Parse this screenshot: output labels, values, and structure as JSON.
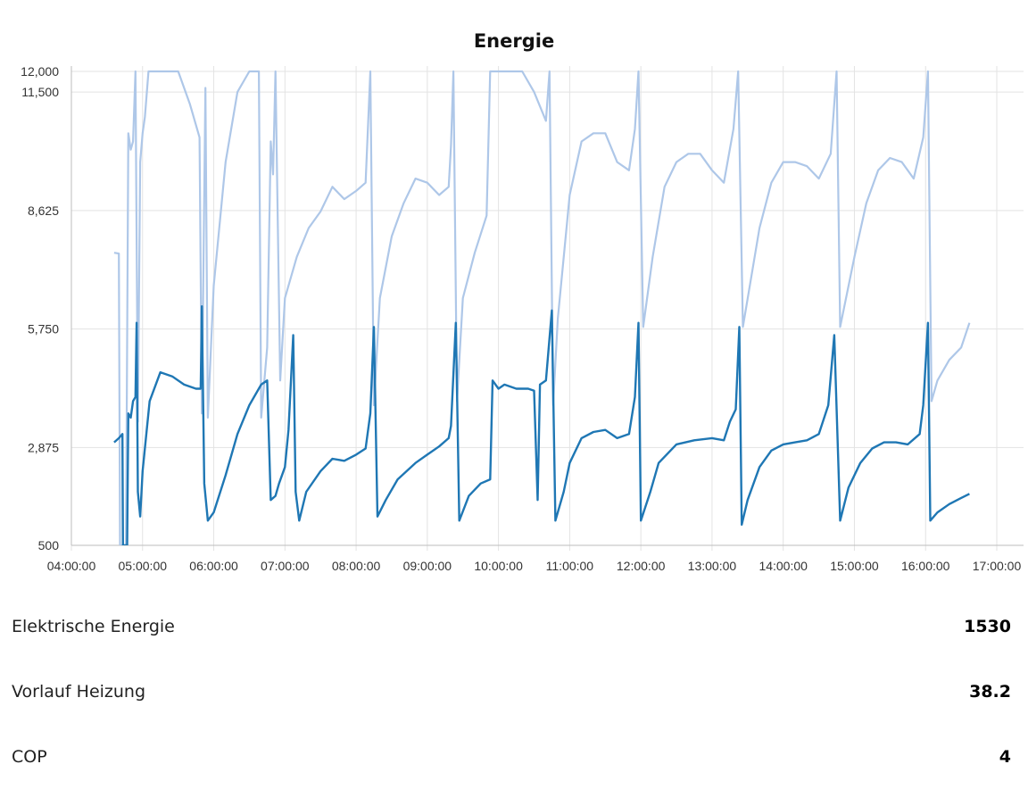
{
  "chart_data": {
    "type": "line",
    "title": "Energie",
    "xlabel": "",
    "ylabel": "",
    "grid": true,
    "legend": "none",
    "x_ticks": [
      "04:00:00",
      "05:00:00",
      "06:00:00",
      "07:00:00",
      "08:00:00",
      "09:00:00",
      "10:00:00",
      "11:00:00",
      "12:00:00",
      "13:00:00",
      "14:00:00",
      "15:00:00",
      "16:00:00",
      "17:00:00"
    ],
    "y_ticks": [
      "500",
      "2,875",
      "5,750",
      "8,625",
      "11,500",
      "12,000"
    ],
    "x_range": [
      "04:00:00",
      "17:00:00"
    ],
    "ylim": [
      500,
      12000
    ],
    "series": [
      {
        "color": "#aec7e8",
        "points": [
          [
            "04:36:00",
            7600
          ],
          [
            "04:40:00",
            7580
          ],
          [
            "04:41:00",
            500
          ],
          [
            "04:46:00",
            500
          ],
          [
            "04:48:00",
            10500
          ],
          [
            "04:50:00",
            10100
          ],
          [
            "04:52:00",
            10300
          ],
          [
            "04:54:00",
            12000
          ],
          [
            "04:56:00",
            3500
          ],
          [
            "04:58:00",
            9800
          ],
          [
            "05:00:00",
            10500
          ],
          [
            "05:02:00",
            10900
          ],
          [
            "05:05:00",
            12000
          ],
          [
            "05:10:00",
            12000
          ],
          [
            "05:30:00",
            12000
          ],
          [
            "05:40:00",
            11200
          ],
          [
            "05:48:00",
            10400
          ],
          [
            "05:50:00",
            3700
          ],
          [
            "05:53:00",
            11600
          ],
          [
            "05:55:00",
            3600
          ],
          [
            "06:00:00",
            6800
          ],
          [
            "06:10:00",
            9800
          ],
          [
            "06:20:00",
            11500
          ],
          [
            "06:30:00",
            12000
          ],
          [
            "06:35:00",
            12000
          ],
          [
            "06:38:00",
            12000
          ],
          [
            "06:40:00",
            3600
          ],
          [
            "06:45:00",
            5300
          ],
          [
            "06:48:00",
            10300
          ],
          [
            "06:50:00",
            9500
          ],
          [
            "06:52:00",
            12000
          ],
          [
            "06:56:00",
            4500
          ],
          [
            "07:00:00",
            6500
          ],
          [
            "07:10:00",
            7500
          ],
          [
            "07:20:00",
            8200
          ],
          [
            "07:30:00",
            8600
          ],
          [
            "07:40:00",
            9200
          ],
          [
            "07:50:00",
            8900
          ],
          [
            "08:00:00",
            9100
          ],
          [
            "08:08:00",
            9300
          ],
          [
            "08:12:00",
            12000
          ],
          [
            "08:15:00",
            3900
          ],
          [
            "08:20:00",
            6500
          ],
          [
            "08:30:00",
            8000
          ],
          [
            "08:40:00",
            8800
          ],
          [
            "08:50:00",
            9400
          ],
          [
            "09:00:00",
            9300
          ],
          [
            "09:10:00",
            9000
          ],
          [
            "09:18:00",
            9200
          ],
          [
            "09:20:00",
            10200
          ],
          [
            "09:22:00",
            12000
          ],
          [
            "09:25:00",
            4000
          ],
          [
            "09:30:00",
            6500
          ],
          [
            "09:40:00",
            7600
          ],
          [
            "09:50:00",
            8500
          ],
          [
            "09:53:00",
            12000
          ],
          [
            "10:00:00",
            12000
          ],
          [
            "10:20:00",
            12000
          ],
          [
            "10:30:00",
            11500
          ],
          [
            "10:40:00",
            10800
          ],
          [
            "10:43:00",
            12000
          ],
          [
            "10:46:00",
            3900
          ],
          [
            "10:50:00",
            6000
          ],
          [
            "11:00:00",
            9000
          ],
          [
            "11:10:00",
            10300
          ],
          [
            "11:20:00",
            10500
          ],
          [
            "11:30:00",
            10500
          ],
          [
            "11:40:00",
            9800
          ],
          [
            "11:50:00",
            9600
          ],
          [
            "11:55:00",
            10600
          ],
          [
            "11:58:00",
            12000
          ],
          [
            "12:02:00",
            5800
          ],
          [
            "12:10:00",
            7500
          ],
          [
            "12:20:00",
            9200
          ],
          [
            "12:30:00",
            9800
          ],
          [
            "12:40:00",
            10000
          ],
          [
            "12:50:00",
            10000
          ],
          [
            "13:00:00",
            9600
          ],
          [
            "13:10:00",
            9300
          ],
          [
            "13:18:00",
            10600
          ],
          [
            "13:22:00",
            12000
          ],
          [
            "13:26:00",
            5800
          ],
          [
            "13:40:00",
            8200
          ],
          [
            "13:50:00",
            9300
          ],
          [
            "14:00:00",
            9800
          ],
          [
            "14:10:00",
            9800
          ],
          [
            "14:20:00",
            9700
          ],
          [
            "14:30:00",
            9400
          ],
          [
            "14:40:00",
            10000
          ],
          [
            "14:45:00",
            12000
          ],
          [
            "14:48:00",
            5800
          ],
          [
            "15:00:00",
            7500
          ],
          [
            "15:10:00",
            8800
          ],
          [
            "15:20:00",
            9600
          ],
          [
            "15:30:00",
            9900
          ],
          [
            "15:40:00",
            9800
          ],
          [
            "15:50:00",
            9400
          ],
          [
            "15:58:00",
            10400
          ],
          [
            "16:02:00",
            12000
          ],
          [
            "16:05:00",
            4000
          ],
          [
            "16:10:00",
            4500
          ],
          [
            "16:20:00",
            5000
          ],
          [
            "16:30:00",
            5300
          ],
          [
            "16:37:00",
            5900
          ]
        ]
      },
      {
        "color": "#1f77b4",
        "points": [
          [
            "04:36:00",
            3000
          ],
          [
            "04:40:00",
            3100
          ],
          [
            "04:43:00",
            3200
          ],
          [
            "04:43:30",
            500
          ],
          [
            "04:45:00",
            500
          ],
          [
            "04:47:00",
            500
          ],
          [
            "04:48:00",
            3700
          ],
          [
            "04:50:00",
            3600
          ],
          [
            "04:52:00",
            4000
          ],
          [
            "04:54:00",
            4100
          ],
          [
            "04:55:00",
            5900
          ],
          [
            "04:56:00",
            1800
          ],
          [
            "04:58:00",
            1200
          ],
          [
            "05:00:00",
            2300
          ],
          [
            "05:06:00",
            4000
          ],
          [
            "05:15:00",
            4700
          ],
          [
            "05:25:00",
            4600
          ],
          [
            "05:35:00",
            4400
          ],
          [
            "05:45:00",
            4300
          ],
          [
            "05:49:00",
            4300
          ],
          [
            "05:50:00",
            6300
          ],
          [
            "05:52:00",
            2000
          ],
          [
            "05:55:00",
            1100
          ],
          [
            "06:00:00",
            1300
          ],
          [
            "06:10:00",
            2200
          ],
          [
            "06:20:00",
            3200
          ],
          [
            "06:30:00",
            3900
          ],
          [
            "06:40:00",
            4400
          ],
          [
            "06:45:00",
            4500
          ],
          [
            "06:48:00",
            1600
          ],
          [
            "06:52:00",
            1700
          ],
          [
            "06:55:00",
            2000
          ],
          [
            "07:00:00",
            2400
          ],
          [
            "07:03:00",
            3300
          ],
          [
            "07:07:00",
            5600
          ],
          [
            "07:09:00",
            1800
          ],
          [
            "07:12:00",
            1100
          ],
          [
            "07:18:00",
            1800
          ],
          [
            "07:30:00",
            2300
          ],
          [
            "07:40:00",
            2600
          ],
          [
            "07:50:00",
            2550
          ],
          [
            "08:00:00",
            2700
          ],
          [
            "08:08:00",
            2850
          ],
          [
            "08:12:00",
            3700
          ],
          [
            "08:15:00",
            5800
          ],
          [
            "08:18:00",
            1200
          ],
          [
            "08:25:00",
            1600
          ],
          [
            "08:35:00",
            2100
          ],
          [
            "08:50:00",
            2500
          ],
          [
            "09:00:00",
            2700
          ],
          [
            "09:10:00",
            2900
          ],
          [
            "09:18:00",
            3100
          ],
          [
            "09:20:00",
            3400
          ],
          [
            "09:24:00",
            5900
          ],
          [
            "09:27:00",
            1100
          ],
          [
            "09:35:00",
            1700
          ],
          [
            "09:45:00",
            2000
          ],
          [
            "09:53:00",
            2100
          ],
          [
            "09:55:00",
            4500
          ],
          [
            "10:00:00",
            4300
          ],
          [
            "10:05:00",
            4400
          ],
          [
            "10:15:00",
            4300
          ],
          [
            "10:25:00",
            4300
          ],
          [
            "10:30:00",
            4250
          ],
          [
            "10:33:00",
            1600
          ],
          [
            "10:35:00",
            4400
          ],
          [
            "10:40:00",
            4500
          ],
          [
            "10:45:00",
            6200
          ],
          [
            "10:48:00",
            1100
          ],
          [
            "10:55:00",
            1800
          ],
          [
            "11:00:00",
            2500
          ],
          [
            "11:10:00",
            3100
          ],
          [
            "11:20:00",
            3250
          ],
          [
            "11:30:00",
            3300
          ],
          [
            "11:40:00",
            3100
          ],
          [
            "11:50:00",
            3200
          ],
          [
            "11:55:00",
            4100
          ],
          [
            "11:58:00",
            5900
          ],
          [
            "12:00:00",
            1100
          ],
          [
            "12:08:00",
            1800
          ],
          [
            "12:15:00",
            2500
          ],
          [
            "12:30:00",
            2950
          ],
          [
            "12:45:00",
            3050
          ],
          [
            "13:00:00",
            3100
          ],
          [
            "13:10:00",
            3050
          ],
          [
            "13:15:00",
            3500
          ],
          [
            "13:20:00",
            3800
          ],
          [
            "13:23:00",
            5800
          ],
          [
            "13:25:00",
            1000
          ],
          [
            "13:30:00",
            1600
          ],
          [
            "13:40:00",
            2400
          ],
          [
            "13:50:00",
            2800
          ],
          [
            "14:00:00",
            2950
          ],
          [
            "14:10:00",
            3000
          ],
          [
            "14:20:00",
            3050
          ],
          [
            "14:30:00",
            3200
          ],
          [
            "14:38:00",
            3900
          ],
          [
            "14:43:00",
            5600
          ],
          [
            "14:48:00",
            1100
          ],
          [
            "14:55:00",
            1900
          ],
          [
            "15:05:00",
            2500
          ],
          [
            "15:15:00",
            2850
          ],
          [
            "15:25:00",
            3000
          ],
          [
            "15:35:00",
            3000
          ],
          [
            "15:45:00",
            2950
          ],
          [
            "15:55:00",
            3200
          ],
          [
            "15:58:00",
            3900
          ],
          [
            "16:02:00",
            5900
          ],
          [
            "16:04:00",
            1100
          ],
          [
            "16:10:00",
            1300
          ],
          [
            "16:20:00",
            1500
          ],
          [
            "16:30:00",
            1650
          ],
          [
            "16:37:00",
            1750
          ]
        ]
      }
    ]
  },
  "info": [
    {
      "label": "Elektrische Energie",
      "value": "1530"
    },
    {
      "label": "Vorlauf Heizung",
      "value": "38.2"
    },
    {
      "label": "COP",
      "value": "4"
    }
  ]
}
